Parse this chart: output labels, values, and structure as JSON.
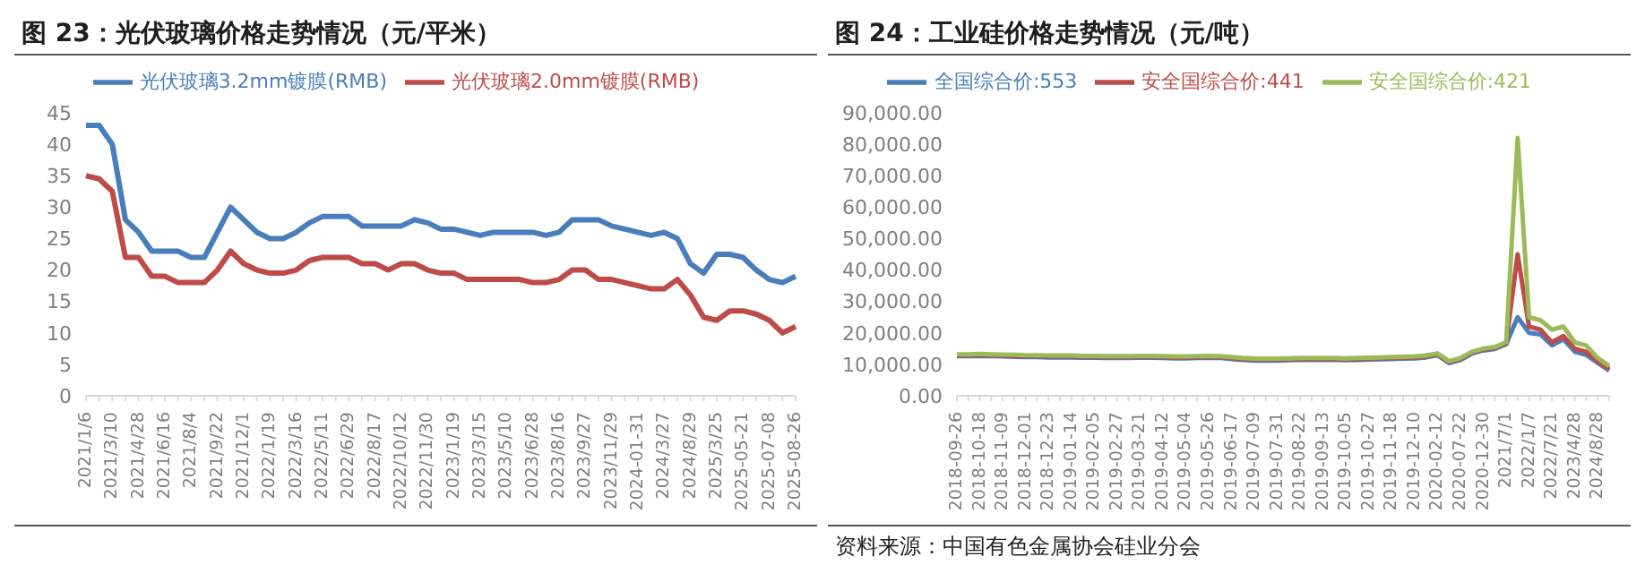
{
  "chart_data": [
    {
      "type": "line",
      "title": "图 23：光伏玻璃价格走势情况（元/平米）",
      "categories": [
        "2021/1/6",
        null,
        "2021/3/10",
        null,
        "2021/4/28",
        null,
        "2021/6/16",
        null,
        "2021/8/4",
        null,
        "2021/9/22",
        null,
        "2021/12/1",
        null,
        "2022/1/19",
        null,
        "2022/3/16",
        null,
        "2022/5/11",
        null,
        "2022/6/29",
        null,
        "2022/8/17",
        null,
        "2022/10/12",
        null,
        "2022/11/30",
        null,
        "2023/1/19",
        null,
        "2023/3/15",
        null,
        "2023/5/10",
        null,
        "2023/6/28",
        null,
        "2023/8/16",
        null,
        "2023/9/27",
        null,
        "2023/11/29",
        null,
        "2024-01-31",
        null,
        "2024/3/27",
        null,
        "2024/8/29",
        null,
        "2025/3/25",
        null,
        "2025-05-21",
        null,
        "2025-07-08",
        null,
        "2025-08-26"
      ],
      "series": [
        {
          "name": "光伏玻璃3.2mm镀膜(RMB)",
          "color": "#4a7ebb",
          "values": [
            43,
            43,
            40,
            28,
            26,
            23,
            23,
            23,
            22,
            22,
            26,
            30,
            28,
            26,
            25,
            25,
            26,
            27.5,
            28.5,
            28.5,
            28.5,
            27,
            27,
            27,
            27,
            28,
            27.5,
            26.5,
            26.5,
            26,
            25.5,
            26,
            26,
            26,
            26,
            25.5,
            26,
            28,
            28,
            28,
            27,
            26.5,
            26,
            25.5,
            26,
            25,
            21,
            19.5,
            22.5,
            22.5,
            22,
            20,
            18.5,
            18,
            19
          ]
        },
        {
          "name": "光伏玻璃2.0mm镀膜(RMB)",
          "color": "#be4b48",
          "values": [
            35,
            34.5,
            32.5,
            22,
            22,
            19,
            19,
            18,
            18,
            18,
            20,
            23,
            21,
            20,
            19.5,
            19.5,
            20,
            21.5,
            22,
            22,
            22,
            21,
            21,
            20,
            21,
            21,
            20,
            19.5,
            19.5,
            18.5,
            18.5,
            18.5,
            18.5,
            18.5,
            18,
            18,
            18.5,
            20,
            20,
            18.5,
            18.5,
            18,
            17.5,
            17,
            17,
            18.5,
            16,
            12.5,
            12,
            13.5,
            13.5,
            13,
            12,
            10,
            11
          ]
        }
      ],
      "ylim": [
        0,
        45
      ],
      "yticks": [
        0,
        5,
        10,
        15,
        20,
        25,
        30,
        35,
        40,
        45
      ],
      "grid": false,
      "legend": "top",
      "marker": "none",
      "line_style": "solid"
    },
    {
      "type": "line",
      "title": "图 24：工业硅价格走势情况（元/吨）",
      "categories": [
        "2018-09-26",
        null,
        "2018-10-18",
        null,
        "2018-11-09",
        null,
        "2018-12-01",
        null,
        "2018-12-23",
        null,
        "2019-01-14",
        null,
        "2019-02-05",
        null,
        "2019-02-27",
        null,
        "2019-03-21",
        null,
        "2019-04-12",
        null,
        "2019-05-04",
        null,
        "2019-05-26",
        null,
        "2019-06-17",
        null,
        "2019-07-09",
        null,
        "2019-07-31",
        null,
        "2019-08-22",
        null,
        "2019-09-13",
        null,
        "2019-10-05",
        null,
        "2019-10-27",
        null,
        "2019-11-18",
        null,
        "2019-12-10",
        null,
        "2020-02-12",
        null,
        "2020-07-22",
        null,
        "2020-12-30",
        null,
        "2021/7/1",
        null,
        "2022/1/7",
        null,
        "2022/7/21",
        null,
        "2023/4/28",
        null,
        "2024/8/28",
        null
      ],
      "series": [
        {
          "name": "全国综合价:553",
          "color": "#4a7ebb",
          "values": [
            12600,
            12600,
            12700,
            12600,
            12500,
            12400,
            12300,
            12300,
            12200,
            12200,
            12200,
            12100,
            12100,
            12000,
            12000,
            12000,
            12100,
            12100,
            12000,
            11900,
            11900,
            12000,
            12100,
            12000,
            11700,
            11400,
            11200,
            11200,
            11200,
            11300,
            11400,
            11400,
            11400,
            11400,
            11300,
            11400,
            11500,
            11600,
            11700,
            11800,
            11900,
            12200,
            12900,
            10400,
            11400,
            13400,
            14400,
            14900,
            16400,
            25000,
            20000,
            19500,
            16000,
            18000,
            14000,
            13000,
            10500,
            8000
          ]
        },
        {
          "name": "安全国综合价:441",
          "color": "#be4b48",
          "values": [
            12900,
            12900,
            13000,
            12900,
            12800,
            12700,
            12600,
            12600,
            12500,
            12500,
            12500,
            12400,
            12400,
            12300,
            12300,
            12300,
            12400,
            12400,
            12300,
            12200,
            12200,
            12300,
            12400,
            12300,
            12000,
            11700,
            11500,
            11500,
            11500,
            11600,
            11700,
            11700,
            11700,
            11700,
            11600,
            11700,
            11800,
            11900,
            12000,
            12100,
            12200,
            12500,
            13200,
            10700,
            11700,
            13700,
            14700,
            15200,
            16700,
            45000,
            22000,
            21000,
            17000,
            19000,
            15000,
            14000,
            11000,
            8500
          ]
        },
        {
          "name": "安全国综合价:421",
          "color": "#9bbb59",
          "values": [
            13200,
            13200,
            13300,
            13200,
            13100,
            13000,
            12900,
            12900,
            12800,
            12800,
            12800,
            12700,
            12700,
            12600,
            12600,
            12600,
            12700,
            12700,
            12600,
            12500,
            12500,
            12600,
            12700,
            12600,
            12300,
            12000,
            11800,
            11800,
            11800,
            11900,
            12000,
            12000,
            12000,
            12000,
            11900,
            12000,
            12100,
            12200,
            12300,
            12400,
            12500,
            12800,
            13500,
            11000,
            12000,
            14000,
            15000,
            15500,
            17000,
            82000,
            25000,
            24000,
            21000,
            22000,
            17000,
            16000,
            12000,
            9500
          ]
        }
      ],
      "ylim": [
        0,
        90000
      ],
      "yticks": [
        {
          "value": 0,
          "label": "0.00"
        },
        {
          "value": 10000,
          "label": "10,000.00"
        },
        {
          "value": 20000,
          "label": "20,000.00"
        },
        {
          "value": 30000,
          "label": "30,000.00"
        },
        {
          "value": 40000,
          "label": "40,000.00"
        },
        {
          "value": 50000,
          "label": "50,000.00"
        },
        {
          "value": 60000,
          "label": "60,000.00"
        },
        {
          "value": 70000,
          "label": "70,000.00"
        },
        {
          "value": 80000,
          "label": "80,000.00"
        },
        {
          "value": 90000,
          "label": "90,000.00"
        }
      ],
      "grid": false,
      "legend": "top",
      "marker": "none",
      "line_style": "solid",
      "annotations": [
        "资料来源：中国有色金属协会硅业分会"
      ]
    }
  ]
}
